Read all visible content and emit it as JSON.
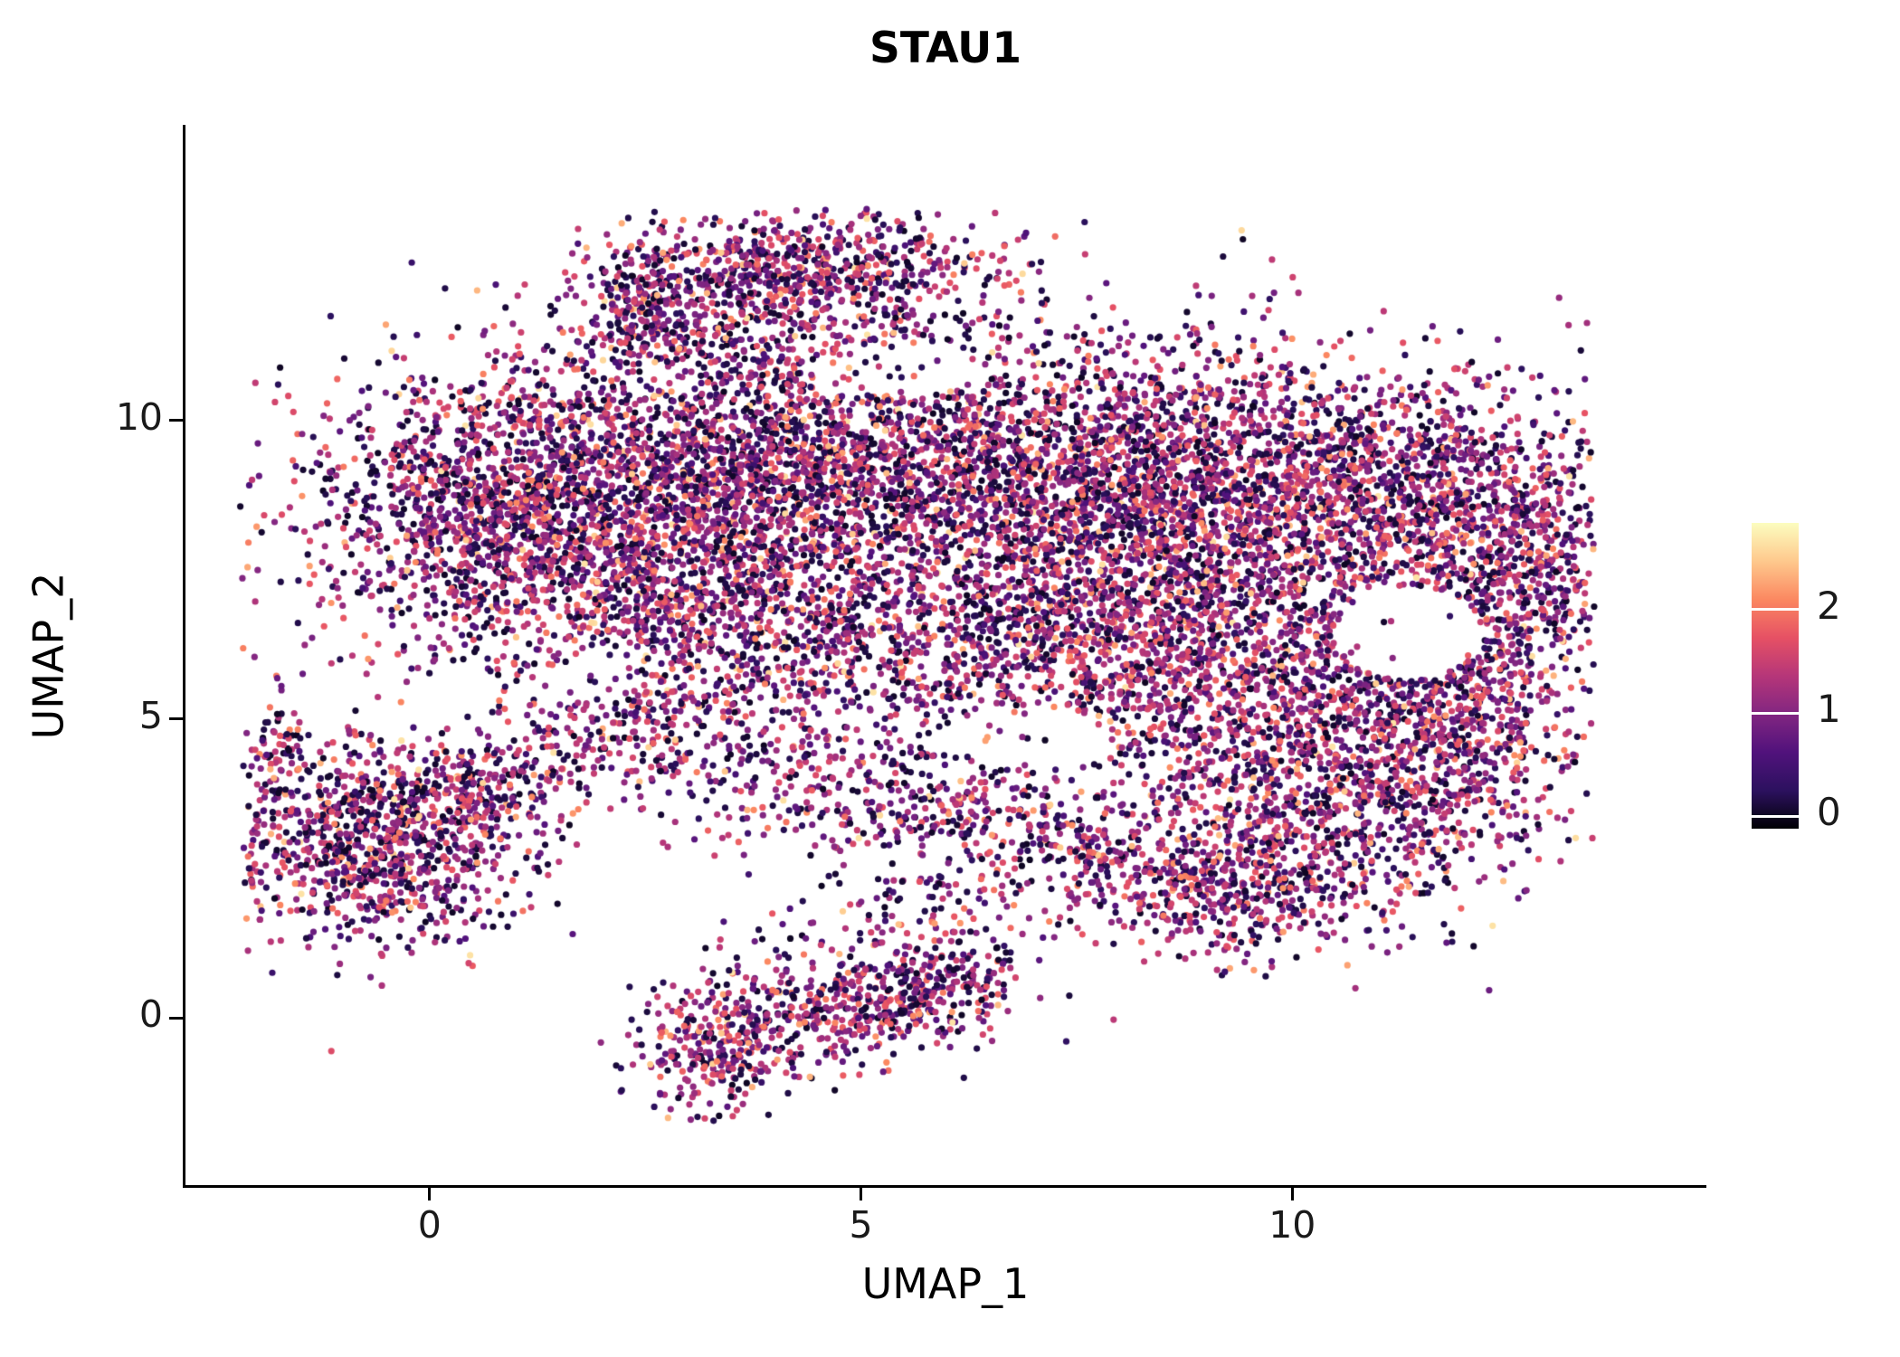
{
  "chart_data": {
    "type": "scatter",
    "title": "STAU1",
    "xlabel": "UMAP_1",
    "ylabel": "UMAP_2",
    "xlim": [
      -2.83,
      14.79
    ],
    "ylim": [
      -2.8,
      14.92
    ],
    "x_ticks": [
      {
        "value": 0,
        "label": "0"
      },
      {
        "value": 5,
        "label": "5"
      },
      {
        "value": 10,
        "label": "10"
      }
    ],
    "y_ticks": [
      {
        "value": 0,
        "label": "0"
      },
      {
        "value": 5,
        "label": "5"
      },
      {
        "value": 10,
        "label": "10"
      }
    ],
    "grid": false,
    "point_radius": 3.6,
    "seed": 42,
    "colorbar": {
      "position": "right",
      "domain": [
        -0.12,
        2.84
      ],
      "ticks": [
        {
          "value": 0,
          "label": "0"
        },
        {
          "value": 1,
          "label": "1"
        },
        {
          "value": 2,
          "label": "2"
        }
      ],
      "colormap": "magma",
      "stops": [
        [
          0.0,
          "#000004"
        ],
        [
          0.125,
          "#2C115F"
        ],
        [
          0.25,
          "#51127C"
        ],
        [
          0.375,
          "#822681"
        ],
        [
          0.5,
          "#B63679"
        ],
        [
          0.625,
          "#E65164"
        ],
        [
          0.75,
          "#FB8861"
        ],
        [
          0.875,
          "#FEC98D"
        ],
        [
          1.0,
          "#FCFDBF"
        ]
      ]
    },
    "expression_distribution": {
      "zero_fraction": 0.26,
      "zero_max": 0.25,
      "mean": 1.22,
      "sd": 0.52,
      "min": 0.05,
      "max": 2.65,
      "bright_fraction": 0.02,
      "bright_min": 2.2,
      "bright_span": 0.45
    },
    "bounds": {
      "xmin": -2.2,
      "xmax": 13.5,
      "ymin": -1.8,
      "ymax": 13.6
    },
    "holes": [
      {
        "x": 11.35,
        "y": 6.45,
        "rx": 0.85,
        "ry": 0.78,
        "p": 0.97
      },
      {
        "x": 7.0,
        "y": 4.7,
        "rx": 1.0,
        "ry": 0.5,
        "p": 0.85
      },
      {
        "x": 5.5,
        "y": 10.85,
        "rx": 1.05,
        "ry": 0.45,
        "p": 0.8
      },
      {
        "x": 1.9,
        "y": 5.75,
        "rx": 0.5,
        "ry": 0.35,
        "p": 0.8
      }
    ],
    "clusters": [
      {
        "x": 4.3,
        "y": 12.55,
        "sx": 1.15,
        "sy": 0.42,
        "n": 650
      },
      {
        "x": 2.45,
        "y": 12.0,
        "sx": 0.35,
        "sy": 0.45,
        "n": 180
      },
      {
        "x": 3.3,
        "y": 11.6,
        "sx": 0.5,
        "sy": 0.4,
        "n": 150
      },
      {
        "x": 1.2,
        "y": 8.6,
        "sx": 1.35,
        "sy": 1.25,
        "n": 2100
      },
      {
        "x": 4.0,
        "y": 9.3,
        "sx": 1.3,
        "sy": 1.05,
        "n": 1300
      },
      {
        "x": 6.8,
        "y": 9.1,
        "sx": 1.5,
        "sy": 1.15,
        "n": 1500
      },
      {
        "x": 9.3,
        "y": 8.7,
        "sx": 1.5,
        "sy": 1.25,
        "n": 1700
      },
      {
        "x": 11.5,
        "y": 8.9,
        "sx": 1.15,
        "sy": 1.05,
        "n": 900
      },
      {
        "x": 12.7,
        "y": 7.4,
        "sx": 0.55,
        "sy": 1.0,
        "n": 380
      },
      {
        "x": 5.6,
        "y": 6.4,
        "sx": 1.6,
        "sy": 0.95,
        "n": 850
      },
      {
        "x": 3.0,
        "y": 6.8,
        "sx": 1.0,
        "sy": 0.9,
        "n": 550
      },
      {
        "x": 8.6,
        "y": 6.0,
        "sx": 1.4,
        "sy": 0.9,
        "n": 800
      },
      {
        "x": 10.6,
        "y": 5.4,
        "sx": 1.2,
        "sy": 0.8,
        "n": 500
      },
      {
        "x": 6.5,
        "y": 8.0,
        "sx": 3.3,
        "sy": 2.1,
        "n": 700
      },
      {
        "x": 10.3,
        "y": 3.5,
        "sx": 1.25,
        "sy": 0.95,
        "n": 950
      },
      {
        "x": 9.3,
        "y": 2.2,
        "sx": 0.85,
        "sy": 0.6,
        "n": 400
      },
      {
        "x": 11.9,
        "y": 4.6,
        "sx": 0.7,
        "sy": 0.7,
        "n": 300
      },
      {
        "x": 12.2,
        "y": 6.0,
        "sx": 0.6,
        "sy": 0.9,
        "n": 250
      },
      {
        "x": -0.6,
        "y": 2.9,
        "sx": 0.85,
        "sy": 0.8,
        "n": 950
      },
      {
        "x": 0.55,
        "y": 3.8,
        "sx": 0.7,
        "sy": 0.4,
        "n": 220
      },
      {
        "x": -1.75,
        "y": 4.55,
        "sx": 0.18,
        "sy": 0.45,
        "n": 70
      },
      {
        "x": 3.3,
        "y": -0.55,
        "sx": 0.5,
        "sy": 0.5,
        "n": 260
      },
      {
        "x": 4.6,
        "y": 0.2,
        "sx": 0.8,
        "sy": 0.5,
        "n": 380
      },
      {
        "x": 5.9,
        "y": 0.55,
        "sx": 0.5,
        "sy": 0.4,
        "n": 220
      },
      {
        "x": 2.2,
        "y": 4.9,
        "sx": 0.9,
        "sy": 0.5,
        "n": 190
      },
      {
        "x": 4.2,
        "y": 4.0,
        "sx": 1.2,
        "sy": 0.5,
        "n": 240
      },
      {
        "x": 6.3,
        "y": 3.4,
        "sx": 0.9,
        "sy": 0.5,
        "n": 230
      },
      {
        "x": 7.6,
        "y": 2.7,
        "sx": 0.65,
        "sy": 0.5,
        "n": 160
      },
      {
        "x": 5.0,
        "y": 11.2,
        "sx": 1.3,
        "sy": 0.55,
        "n": 170
      },
      {
        "x": 5.8,
        "y": 1.8,
        "sx": 0.7,
        "sy": 0.4,
        "n": 90
      }
    ]
  }
}
